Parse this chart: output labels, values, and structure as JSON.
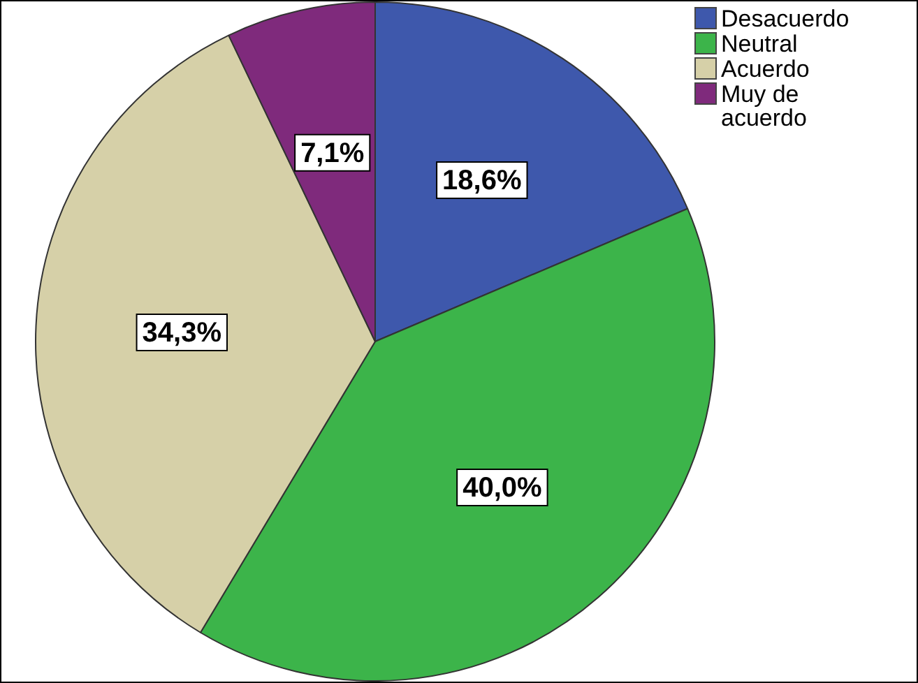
{
  "chart_data": {
    "type": "pie",
    "categories": [
      "Desacuerdo",
      "Neutral",
      "Acuerdo",
      "Muy de acuerdo"
    ],
    "values": [
      18.6,
      40.0,
      34.3,
      7.1
    ],
    "colors": [
      "#3e58ac",
      "#3cb44a",
      "#d6d0a8",
      "#7f2a7c"
    ],
    "value_labels": [
      "18,6%",
      "40,0%",
      "34,3%",
      "7,1%"
    ],
    "legend": "top right"
  }
}
